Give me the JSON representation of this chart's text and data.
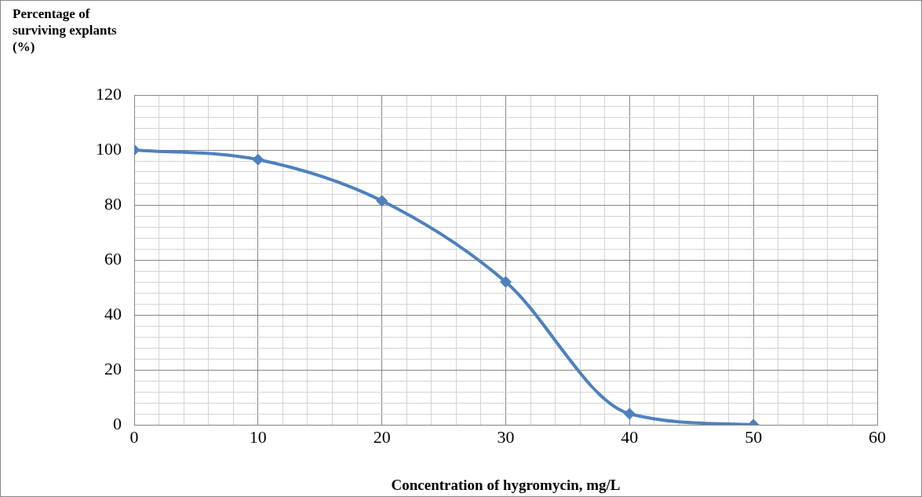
{
  "chart_data": {
    "type": "line",
    "ylabel": "Percentage of\nsurviving explants\n(%)",
    "xlabel": "Concentration of hygromycin, mg/L",
    "x": [
      0,
      10,
      20,
      30,
      40,
      50
    ],
    "series": [
      {
        "color": "#4f81bd",
        "values": [
          100,
          96.5,
          81.5,
          52,
          4,
          0
        ]
      }
    ],
    "xlim": [
      0,
      60
    ],
    "xticks": [
      0,
      {
        "value": 2,
        "label": null
      },
      {
        "value": 4,
        "label": null
      },
      {
        "value": 6,
        "label": null
      },
      {
        "value": 8,
        "label": null
      },
      10,
      {
        "value": 12,
        "label": null
      },
      {
        "value": 14,
        "label": null
      },
      {
        "value": 16,
        "label": null
      },
      {
        "value": 18,
        "label": null
      },
      20,
      {
        "value": 22,
        "label": null
      },
      {
        "value": 24,
        "label": null
      },
      {
        "value": 26,
        "label": null
      },
      {
        "value": 28,
        "label": null
      },
      30,
      {
        "value": 32,
        "label": null
      },
      {
        "value": 34,
        "label": null
      },
      {
        "value": 36,
        "label": null
      },
      {
        "value": 38,
        "label": null
      },
      40,
      {
        "value": 42,
        "label": null
      },
      {
        "value": 44,
        "label": null
      },
      {
        "value": 46,
        "label": null
      },
      {
        "value": 48,
        "label": null
      },
      50,
      {
        "value": 52,
        "label": null
      },
      {
        "value": 54,
        "label": null
      },
      {
        "value": 56,
        "label": null
      },
      {
        "value": 58,
        "label": null
      },
      60
    ],
    "ylim": [
      0,
      120
    ],
    "yticks": [
      0,
      {
        "value": 4,
        "label": null
      },
      {
        "value": 8,
        "label": null
      },
      {
        "value": 12,
        "label": null
      },
      {
        "value": 16,
        "label": null
      },
      20,
      {
        "value": 24,
        "label": null
      },
      {
        "value": 28,
        "label": null
      },
      {
        "value": 32,
        "label": null
      },
      {
        "value": 36,
        "label": null
      },
      40,
      {
        "value": 44,
        "label": null
      },
      {
        "value": 48,
        "label": null
      },
      {
        "value": 52,
        "label": null
      },
      {
        "value": 56,
        "label": null
      },
      60,
      {
        "value": 64,
        "label": null
      },
      {
        "value": 68,
        "label": null
      },
      {
        "value": 72,
        "label": null
      },
      {
        "value": 76,
        "label": null
      },
      80,
      {
        "value": 84,
        "label": null
      },
      {
        "value": 88,
        "label": null
      },
      {
        "value": 92,
        "label": null
      },
      {
        "value": 96,
        "label": null
      },
      100,
      {
        "value": 104,
        "label": null
      },
      {
        "value": 108,
        "label": null
      },
      {
        "value": 112,
        "label": null
      },
      {
        "value": 116,
        "label": null
      },
      120
    ],
    "grid": true,
    "legend": false,
    "marker": "diamond",
    "line_style": "solid"
  }
}
